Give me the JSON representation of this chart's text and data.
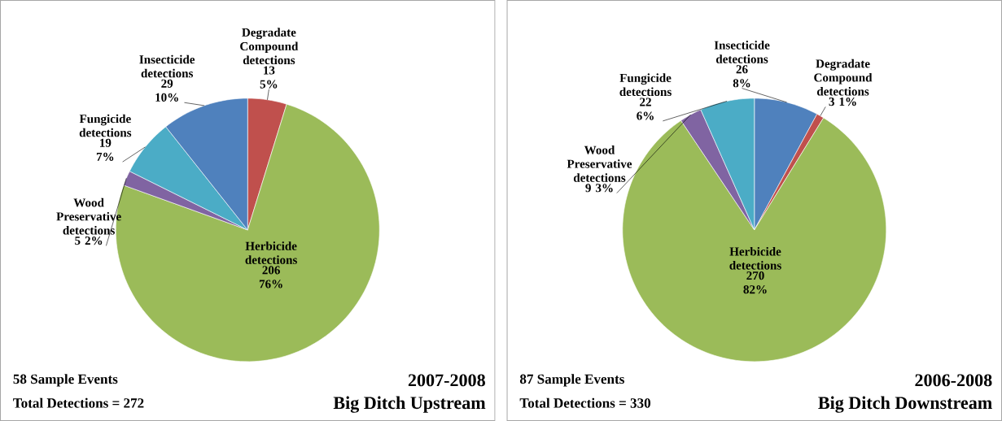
{
  "chart_data": [
    {
      "type": "pie",
      "title": "2007-2008",
      "subtitle": "Big Ditch Upstream",
      "categories": [
        "Degradate Compound detections",
        "Herbicide detections",
        "Wood Preservative detections",
        "Fungicide detections",
        "Insecticide detections"
      ],
      "values": [
        13,
        206,
        5,
        19,
        29
      ],
      "value_labels": [
        "13 5%",
        "206 76%",
        "5 2%",
        "19 7%",
        "29 10%"
      ],
      "colors": [
        "#c0504d",
        "#9bbb59",
        "#8064a2",
        "#4bacc6",
        "#4f81bd"
      ],
      "annotations": [
        "58 Sample Events",
        "Total Detections = 272"
      ]
    },
    {
      "type": "pie",
      "title": "2006-2008",
      "subtitle": "Big Ditch Downstream",
      "categories": [
        "Insecticide detections",
        "Degradate Compound detections",
        "Herbicide detections",
        "Wood Preservative detections",
        "Fungicide detections"
      ],
      "values": [
        26,
        3,
        270,
        9,
        22
      ],
      "value_labels": [
        "26 8%",
        "3 1%",
        "270 82%",
        "9 3%",
        "22 6%"
      ],
      "colors": [
        "#4f81bd",
        "#c0504d",
        "#9bbb59",
        "#8064a2",
        "#4bacc6"
      ],
      "annotations": [
        "87 Sample Events",
        "Total Detections = 330"
      ]
    }
  ]
}
